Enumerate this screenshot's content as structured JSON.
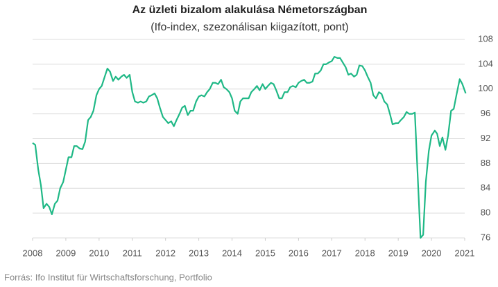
{
  "chart_data": {
    "type": "line",
    "title": "Az üzleti bizalom alakulása Németországban",
    "subtitle": "(Ifo-index, szezonálisan kiigazított, pont)",
    "source": "Forrás: Ifo Institut für Wirtschaftsforschung, Portfolio",
    "color": "#1fb886",
    "grid": true,
    "xlim": [
      2008,
      2021
    ],
    "xticks": [
      2008,
      2009,
      2010,
      2011,
      2012,
      2013,
      2014,
      2015,
      2016,
      2017,
      2018,
      2019,
      2020,
      2021
    ],
    "ylim": [
      76,
      108
    ],
    "yticks": [
      76,
      80,
      84,
      88,
      92,
      96,
      100,
      104,
      108
    ],
    "x": [
      2008.0,
      2008.08,
      2008.17,
      2008.25,
      2008.33,
      2008.42,
      2008.5,
      2008.58,
      2008.67,
      2008.75,
      2008.83,
      2008.92,
      2009.0,
      2009.08,
      2009.17,
      2009.25,
      2009.33,
      2009.42,
      2009.5,
      2009.58,
      2009.67,
      2009.75,
      2009.83,
      2009.92,
      2010.0,
      2010.08,
      2010.17,
      2010.25,
      2010.33,
      2010.42,
      2010.5,
      2010.58,
      2010.67,
      2010.75,
      2010.83,
      2010.92,
      2011.0,
      2011.08,
      2011.17,
      2011.25,
      2011.33,
      2011.42,
      2011.5,
      2011.58,
      2011.67,
      2011.75,
      2011.83,
      2011.92,
      2012.0,
      2012.08,
      2012.17,
      2012.25,
      2012.33,
      2012.42,
      2012.5,
      2012.58,
      2012.67,
      2012.75,
      2012.83,
      2012.92,
      2013.0,
      2013.08,
      2013.17,
      2013.25,
      2013.33,
      2013.42,
      2013.5,
      2013.58,
      2013.67,
      2013.75,
      2013.83,
      2013.92,
      2014.0,
      2014.08,
      2014.17,
      2014.25,
      2014.33,
      2014.42,
      2014.5,
      2014.58,
      2014.67,
      2014.75,
      2014.83,
      2014.92,
      2015.0,
      2015.08,
      2015.17,
      2015.25,
      2015.33,
      2015.42,
      2015.5,
      2015.58,
      2015.67,
      2015.75,
      2015.83,
      2015.92,
      2016.0,
      2016.08,
      2016.17,
      2016.25,
      2016.33,
      2016.42,
      2016.5,
      2016.58,
      2016.67,
      2016.75,
      2016.83,
      2016.92,
      2017.0,
      2017.08,
      2017.17,
      2017.25,
      2017.33,
      2017.42,
      2017.5,
      2017.58,
      2017.67,
      2017.75,
      2017.83,
      2017.92,
      2018.0,
      2018.08,
      2018.17,
      2018.25,
      2018.33,
      2018.42,
      2018.5,
      2018.58,
      2018.67,
      2018.75,
      2018.83,
      2018.92,
      2019.0,
      2019.08,
      2019.17,
      2019.25,
      2019.33,
      2019.42,
      2019.5,
      2019.67,
      2019.75,
      2019.83,
      2019.92,
      2020.0,
      2020.1,
      2020.17,
      2020.25,
      2020.33,
      2020.42,
      2020.5,
      2020.59,
      2020.67,
      2020.75,
      2020.85,
      2020.93,
      2021.03
    ],
    "values": [
      91.3,
      91.0,
      87.0,
      84.5,
      80.8,
      81.5,
      81.0,
      79.8,
      81.5,
      82.0,
      84.0,
      85.0,
      87.0,
      89.0,
      89.0,
      90.8,
      90.8,
      90.4,
      90.3,
      91.5,
      95.0,
      95.5,
      96.5,
      99.0,
      100.0,
      100.5,
      102.0,
      103.3,
      102.8,
      101.3,
      102.0,
      101.5,
      102.0,
      102.3,
      101.8,
      102.3,
      99.5,
      98.0,
      97.8,
      98.0,
      97.8,
      98.0,
      98.8,
      99.0,
      99.3,
      98.5,
      97.0,
      95.5,
      95.0,
      94.5,
      94.8,
      94.0,
      95.0,
      96.0,
      97.0,
      97.3,
      95.8,
      96.5,
      96.5,
      98.0,
      98.8,
      99.0,
      98.8,
      99.5,
      100.0,
      101.0,
      101.0,
      100.8,
      101.5,
      100.3,
      100.0,
      99.5,
      98.5,
      96.5,
      96.0,
      98.0,
      98.5,
      98.5,
      98.5,
      99.5,
      100.0,
      100.5,
      99.8,
      100.8,
      100.0,
      100.5,
      101.0,
      100.8,
      99.8,
      98.5,
      98.5,
      99.5,
      99.5,
      100.3,
      100.5,
      100.3,
      101.0,
      101.3,
      101.5,
      101.0,
      101.0,
      101.2,
      102.5,
      102.5,
      103.0,
      104.0,
      104.0,
      104.3,
      104.5,
      105.2,
      105.0,
      105.0,
      104.3,
      103.5,
      102.3,
      102.5,
      102.0,
      102.3,
      103.8,
      103.7,
      103.0,
      102.0,
      101.0,
      99.0,
      98.5,
      99.5,
      99.2,
      98.0,
      97.5,
      96.0,
      94.3,
      94.5,
      94.5,
      95.0,
      95.5,
      96.3,
      96.0,
      96.0,
      96.2,
      76.0,
      76.5,
      85.0,
      90.0,
      92.5,
      93.3,
      92.8,
      90.8,
      92.2,
      90.2,
      92.5,
      96.5,
      96.8,
      99.0,
      101.6,
      100.8,
      99.3
    ]
  }
}
